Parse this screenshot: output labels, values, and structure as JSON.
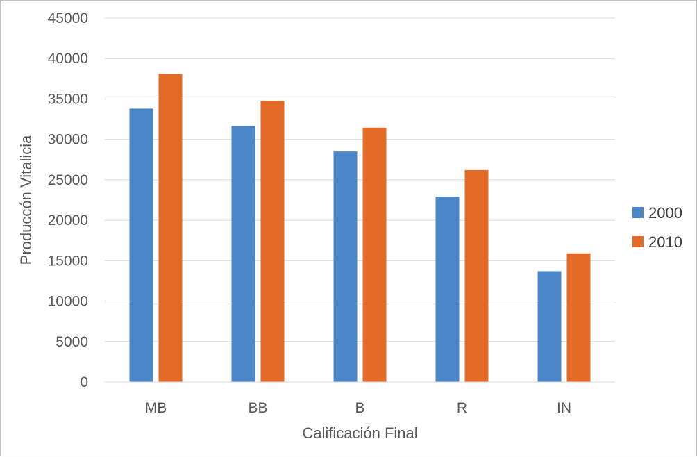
{
  "chart_data": {
    "type": "bar",
    "categories": [
      "MB",
      "BB",
      "B",
      "R",
      "IN"
    ],
    "series": [
      {
        "name": "2000",
        "color": "#4a86c8",
        "values": [
          33800,
          31650,
          28500,
          22900,
          13700
        ]
      },
      {
        "name": "2010",
        "color": "#e46a27",
        "values": [
          38100,
          34750,
          31450,
          26200,
          15900
        ]
      }
    ],
    "xlabel": "Calificación Final",
    "ylabel": "Produccón Vitalicia",
    "ylim": [
      0,
      45000
    ],
    "yticks": [
      0,
      5000,
      10000,
      15000,
      20000,
      25000,
      30000,
      35000,
      40000,
      45000
    ],
    "grid": true,
    "legend_position": "right"
  }
}
